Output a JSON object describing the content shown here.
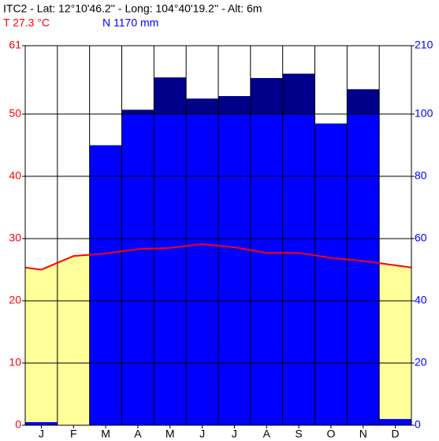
{
  "chart_data": {
    "type": "climate",
    "title": "ITC2 - Lat: 12°10'46.2'' - Long: 104°40'19.2'' - Alt: 6m",
    "temperature_label": "T 27.3 °C",
    "precipitation_label": "N 1170 mm",
    "categories": [
      "J",
      "F",
      "M",
      "A",
      "M",
      "J",
      "J",
      "A",
      "S",
      "O",
      "N",
      "D"
    ],
    "temperature": {
      "color": "#ff0000",
      "values": [
        25.0,
        27.2,
        27.6,
        28.3,
        28.5,
        29.1,
        28.6,
        27.7,
        27.7,
        26.9,
        26.4,
        25.7
      ]
    },
    "precipitation": {
      "color": "#0000ff",
      "excess_color": "#00008b",
      "values": [
        1,
        0,
        90,
        107,
        159,
        125,
        129,
        158,
        165,
        97,
        140,
        2
      ]
    },
    "dry_color": "#ffff99",
    "ylim": [
      0,
      61
    ],
    "yticks": [
      0,
      10,
      20,
      30,
      40,
      50,
      61
    ],
    "y2lim": [
      0,
      210
    ],
    "y2ticks": [
      0,
      20,
      40,
      60,
      80,
      100,
      210
    ],
    "y2_break": 100,
    "grid": true
  }
}
